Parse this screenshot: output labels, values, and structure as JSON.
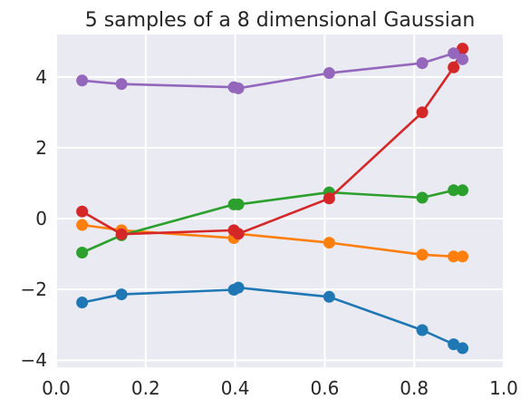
{
  "chart_data": {
    "type": "line",
    "title": "5 samples of a 8 dimensional Gaussian",
    "xlabel": "",
    "ylabel": "",
    "xlim": [
      0.0,
      1.0
    ],
    "ylim": [
      -4.2,
      5.2
    ],
    "xticks": [
      "0.0",
      "0.2",
      "0.4",
      "0.6",
      "0.8",
      "1.0"
    ],
    "xtick_values": [
      0.0,
      0.2,
      0.4,
      0.6,
      0.8,
      1.0
    ],
    "yticks": [
      "−4",
      "−2",
      "0",
      "2",
      "4"
    ],
    "ytick_values": [
      -4,
      -2,
      0,
      2,
      4
    ],
    "grid": true,
    "background": "#eaeaf2",
    "x": [
      0.058,
      0.146,
      0.397,
      0.407,
      0.61,
      0.818,
      0.888,
      0.908
    ],
    "series": [
      {
        "color": "#1f77b4",
        "values": [
          -2.37,
          -2.14,
          -2.01,
          -1.95,
          -2.21,
          -3.15,
          -3.55,
          -3.66
        ]
      },
      {
        "color": "#ff7f0e",
        "values": [
          -0.18,
          -0.33,
          -0.55,
          -0.43,
          -0.68,
          -1.02,
          -1.07,
          -1.07
        ]
      },
      {
        "color": "#2ca02c",
        "values": [
          -0.96,
          -0.47,
          0.4,
          0.4,
          0.74,
          0.59,
          0.8,
          0.8
        ]
      },
      {
        "color": "#d62728",
        "values": [
          0.2,
          -0.44,
          -0.33,
          -0.43,
          0.57,
          3.0,
          4.27,
          4.8
        ]
      },
      {
        "color": "#9467bd",
        "values": [
          3.9,
          3.8,
          3.71,
          3.68,
          4.11,
          4.39,
          4.67,
          4.5
        ]
      }
    ]
  }
}
